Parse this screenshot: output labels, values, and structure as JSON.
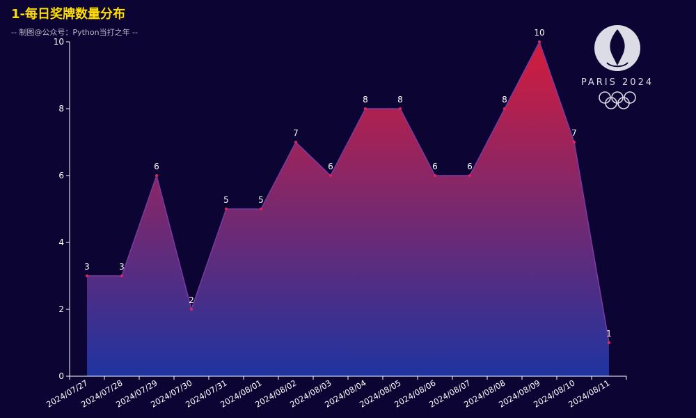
{
  "title": "1-每日奖牌数量分布",
  "subtitle": "-- 制图@公众号：Python当打之年 --",
  "logo": {
    "text": "PARIS 2024",
    "icon": "paris-2024-olympic-logo"
  },
  "colors": {
    "background": "#0c0533",
    "title": "#ffde00",
    "gradient_top": "#d41c3c",
    "gradient_bottom": "#1e34a0",
    "line": "#7a3aa0",
    "label": "#ffffff",
    "axis": "#ffffff"
  },
  "chart_data": {
    "type": "area",
    "categories": [
      "2024/07/27",
      "2024/07/28",
      "2024/07/29",
      "2024/07/30",
      "2024/07/31",
      "2024/08/01",
      "2024/08/02",
      "2024/08/03",
      "2024/08/04",
      "2024/08/05",
      "2024/08/06",
      "2024/08/07",
      "2024/08/08",
      "2024/08/09",
      "2024/08/10",
      "2024/08/11"
    ],
    "values": [
      3,
      3,
      6,
      2,
      5,
      5,
      7,
      6,
      8,
      8,
      6,
      6,
      8,
      10,
      7,
      1
    ],
    "ylim": [
      0,
      10
    ],
    "yticks": [
      0,
      2,
      4,
      6,
      8,
      10
    ],
    "data_labels": true,
    "grid": false,
    "legend": "none"
  }
}
